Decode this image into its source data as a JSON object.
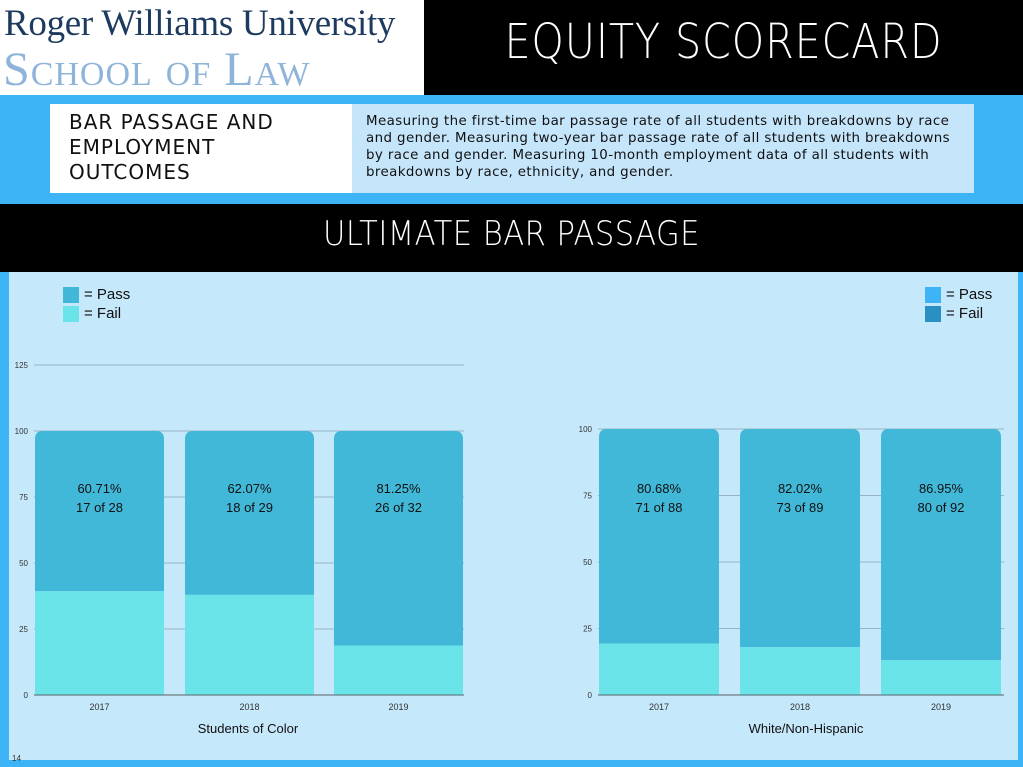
{
  "header": {
    "logo_line1": "Roger Williams University",
    "logo_line2": "School of Law",
    "title": "EQUITY SCORECARD"
  },
  "info": {
    "heading": "BAR PASSAGE AND EMPLOYMENT OUTCOMES",
    "description": "Measuring the first-time bar passage rate of all students with breakdowns by race and gender. Measuring two-year bar passage rate of all students with breakdowns by race and gender. Measuring 10-month employment data of all students with breakdowns by race, ethnicity, and gender."
  },
  "section_title": "ULTIMATE BAR PASSAGE",
  "page_number": "14",
  "legends": [
    {
      "pass_label": "= Pass",
      "fail_label": "= Fail",
      "pass_color": "#42b8d8",
      "fail_color": "#6ae4e9"
    },
    {
      "pass_label": "= Pass",
      "fail_label": "= Fail",
      "pass_color": "#3db4f5",
      "fail_color": "#2a8fc2"
    }
  ],
  "chart_data": [
    {
      "type": "bar",
      "stacked": true,
      "xlabel": "Students of Color",
      "ylabel": "",
      "categories": [
        "2017",
        "2018",
        "2019"
      ],
      "y_ticks": [
        0,
        25,
        50,
        75,
        100,
        125
      ],
      "ylim": [
        0,
        125
      ],
      "series": [
        {
          "name": "Fail",
          "values": [
            39.29,
            37.93,
            18.75
          ],
          "color": "#6ae4e9"
        },
        {
          "name": "Pass",
          "values": [
            60.71,
            62.07,
            81.25
          ],
          "color": "#42b8d8"
        }
      ],
      "data_labels": [
        {
          "percent": "60.71%",
          "count": "17 of 28"
        },
        {
          "percent": "62.07%",
          "count": "18 of 29"
        },
        {
          "percent": "81.25%",
          "count": "26 of 32"
        }
      ]
    },
    {
      "type": "bar",
      "stacked": true,
      "xlabel": "White/Non-Hispanic",
      "ylabel": "",
      "categories": [
        "2017",
        "2018",
        "2019"
      ],
      "y_ticks": [
        0,
        25,
        50,
        75,
        100
      ],
      "ylim": [
        0,
        100
      ],
      "series": [
        {
          "name": "Fail",
          "values": [
            19.32,
            17.98,
            13.05
          ],
          "color": "#6ae4e9"
        },
        {
          "name": "Pass",
          "values": [
            80.68,
            82.02,
            86.95
          ],
          "color": "#42b8d8"
        }
      ],
      "data_labels": [
        {
          "percent": "80.68%",
          "count": "71 of 88"
        },
        {
          "percent": "82.02%",
          "count": "73 of 89"
        },
        {
          "percent": "86.95%",
          "count": "80 of 92"
        }
      ]
    }
  ]
}
